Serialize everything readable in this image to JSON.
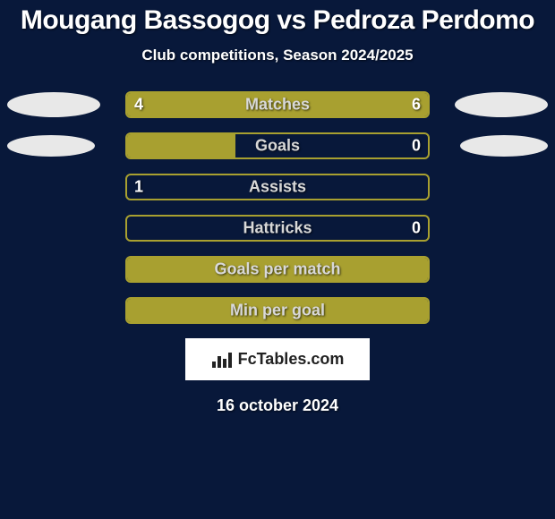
{
  "page": {
    "background_color": "#08183a",
    "text_color": "#ffffff"
  },
  "header": {
    "title": "Mougang Bassogog vs Pedroza Perdomo",
    "title_fontsize": 30,
    "title_color": "#ffffff",
    "subtitle": "Club competitions, Season 2024/2025",
    "subtitle_fontsize": 17,
    "subtitle_color": "#ffffff"
  },
  "players": {
    "left_ellipse_color": "#e8e8e8",
    "right_ellipse_color": "#e8e8e8",
    "ellipse_w": 104,
    "ellipse_h": 28
  },
  "chart": {
    "track_border_color": "#a8a030",
    "track_border_width": 2,
    "bar_fill_color": "#a8a030",
    "bar_radius": 6,
    "label_color": "#d8d8d8",
    "value_color": "#ffffff",
    "value_fontsize": 18,
    "label_fontsize": 18,
    "rows": [
      {
        "label": "Matches",
        "left_val": "4",
        "right_val": "6",
        "left_pct": 40,
        "right_pct": 60,
        "show_left_ellipse": true,
        "show_right_ellipse": true,
        "ellipse_w": 104,
        "ellipse_h": 28
      },
      {
        "label": "Goals",
        "left_val": "",
        "right_val": "0",
        "left_pct": 36,
        "right_pct": 0,
        "show_left_ellipse": true,
        "show_right_ellipse": true,
        "ellipse_w": 98,
        "ellipse_h": 24
      },
      {
        "label": "Assists",
        "left_val": "1",
        "right_val": "",
        "left_pct": 0,
        "right_pct": 0,
        "show_left_ellipse": false,
        "show_right_ellipse": false
      },
      {
        "label": "Hattricks",
        "left_val": "",
        "right_val": "0",
        "left_pct": 0,
        "right_pct": 0,
        "show_left_ellipse": false,
        "show_right_ellipse": false
      },
      {
        "label": "Goals per match",
        "left_val": "",
        "right_val": "",
        "left_pct": 100,
        "right_pct": 0,
        "show_left_ellipse": false,
        "show_right_ellipse": false
      },
      {
        "label": "Min per goal",
        "left_val": "",
        "right_val": "",
        "left_pct": 100,
        "right_pct": 0,
        "show_left_ellipse": false,
        "show_right_ellipse": false
      }
    ]
  },
  "footer": {
    "logo_bg": "#ffffff",
    "logo_text": "FcTables.com",
    "logo_text_color": "#222222",
    "logo_fontsize": 18,
    "date": "16 october 2024",
    "date_fontsize": 18,
    "date_color": "#ffffff"
  }
}
